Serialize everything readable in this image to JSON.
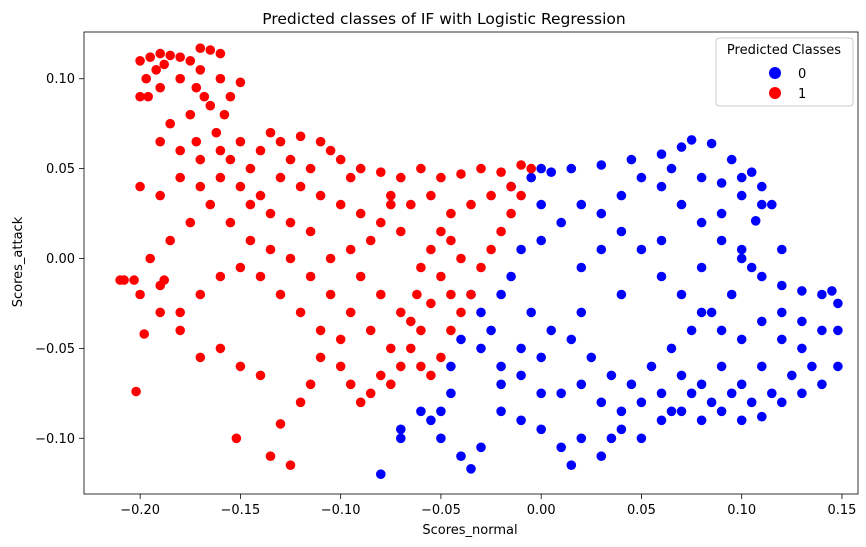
{
  "chart_data": {
    "type": "scatter",
    "title": "Predicted classes of IF with Logistic Regression",
    "xlabel": "Scores_normal",
    "ylabel": "Scores_attack",
    "xlim": [
      -0.228,
      0.158
    ],
    "ylim": [
      -0.131,
      0.126
    ],
    "x_ticks": [
      -0.2,
      -0.15,
      -0.1,
      -0.05,
      0.0,
      0.05,
      0.1,
      0.15
    ],
    "x_tick_labels": [
      "−0.20",
      "−0.15",
      "−0.10",
      "−0.05",
      "0.00",
      "0.05",
      "0.10",
      "0.15"
    ],
    "y_ticks": [
      -0.1,
      -0.05,
      0.0,
      0.05,
      0.1
    ],
    "y_tick_labels": [
      "−0.10",
      "−0.05",
      "0.00",
      "0.05",
      "0.10"
    ],
    "grid": false,
    "legend": {
      "title": "Predicted Classes",
      "placement": "top-right",
      "entries": [
        {
          "label": "0",
          "color": "#0000ff"
        },
        {
          "label": "1",
          "color": "#ff0000"
        }
      ]
    },
    "series": [
      {
        "name": "0",
        "color": "#0000ff",
        "points": [
          [
            0.005,
            0.048
          ],
          [
            0.015,
            0.05
          ],
          [
            0.03,
            0.052
          ],
          [
            0.045,
            0.055
          ],
          [
            0.06,
            0.058
          ],
          [
            0.07,
            0.062
          ],
          [
            0.075,
            0.066
          ],
          [
            0.085,
            0.064
          ],
          [
            0.095,
            0.055
          ],
          [
            0.105,
            0.048
          ],
          [
            0.11,
            0.04
          ],
          [
            0.115,
            0.03
          ],
          [
            0.1,
            0.035
          ],
          [
            0.09,
            0.025
          ],
          [
            0.08,
            0.02
          ],
          [
            0.07,
            0.03
          ],
          [
            0.06,
            0.04
          ],
          [
            0.05,
            0.045
          ],
          [
            0.04,
            0.035
          ],
          [
            0.03,
            0.025
          ],
          [
            0.02,
            0.03
          ],
          [
            0.01,
            0.02
          ],
          [
            0.0,
            0.03
          ],
          [
            0.0,
            0.01
          ],
          [
            -0.01,
            0.005
          ],
          [
            -0.015,
            -0.01
          ],
          [
            -0.02,
            -0.02
          ],
          [
            -0.03,
            -0.03
          ],
          [
            -0.04,
            -0.045
          ],
          [
            -0.045,
            -0.06
          ],
          [
            -0.045,
            -0.075
          ],
          [
            -0.05,
            -0.085
          ],
          [
            -0.055,
            -0.09
          ],
          [
            -0.06,
            -0.085
          ],
          [
            -0.07,
            -0.1
          ],
          [
            -0.08,
            -0.12
          ],
          [
            -0.07,
            -0.095
          ],
          [
            -0.05,
            -0.1
          ],
          [
            -0.04,
            -0.11
          ],
          [
            -0.035,
            -0.117
          ],
          [
            -0.03,
            -0.105
          ],
          [
            -0.02,
            -0.085
          ],
          [
            -0.01,
            -0.09
          ],
          [
            0.0,
            -0.075
          ],
          [
            0.0,
            -0.095
          ],
          [
            0.01,
            -0.105
          ],
          [
            0.015,
            -0.115
          ],
          [
            0.02,
            -0.1
          ],
          [
            0.03,
            -0.11
          ],
          [
            0.035,
            -0.1
          ],
          [
            0.04,
            -0.095
          ],
          [
            0.05,
            -0.1
          ],
          [
            0.06,
            -0.09
          ],
          [
            0.07,
            -0.085
          ],
          [
            0.08,
            -0.09
          ],
          [
            0.09,
            -0.085
          ],
          [
            0.1,
            -0.09
          ],
          [
            0.11,
            -0.088
          ],
          [
            0.12,
            -0.08
          ],
          [
            0.13,
            -0.075
          ],
          [
            0.14,
            -0.07
          ],
          [
            0.148,
            -0.06
          ],
          [
            0.148,
            -0.04
          ],
          [
            0.148,
            -0.025
          ],
          [
            0.145,
            -0.018
          ],
          [
            0.14,
            -0.02
          ],
          [
            0.13,
            -0.018
          ],
          [
            0.12,
            -0.015
          ],
          [
            0.11,
            -0.01
          ],
          [
            0.1,
            0.005
          ],
          [
            0.105,
            -0.005
          ],
          [
            0.095,
            -0.02
          ],
          [
            0.085,
            -0.03
          ],
          [
            0.075,
            -0.04
          ],
          [
            0.065,
            -0.05
          ],
          [
            0.055,
            -0.06
          ],
          [
            0.045,
            -0.07
          ],
          [
            0.035,
            -0.065
          ],
          [
            0.025,
            -0.055
          ],
          [
            0.015,
            -0.045
          ],
          [
            0.005,
            -0.04
          ],
          [
            -0.005,
            -0.03
          ],
          [
            -0.01,
            -0.05
          ],
          [
            -0.02,
            -0.06
          ],
          [
            -0.025,
            -0.04
          ],
          [
            -0.035,
            -0.02
          ],
          [
            -0.03,
            -0.05
          ],
          [
            -0.02,
            -0.07
          ],
          [
            -0.01,
            -0.065
          ],
          [
            0.0,
            -0.055
          ],
          [
            0.02,
            -0.03
          ],
          [
            0.04,
            -0.02
          ],
          [
            0.06,
            -0.01
          ],
          [
            0.08,
            -0.005
          ],
          [
            0.09,
            0.01
          ],
          [
            0.1,
            0.0
          ],
          [
            0.12,
            -0.03
          ],
          [
            0.13,
            -0.05
          ],
          [
            0.14,
            -0.04
          ],
          [
            0.11,
            -0.06
          ],
          [
            0.1,
            -0.07
          ],
          [
            0.09,
            -0.06
          ],
          [
            0.08,
            -0.07
          ],
          [
            0.07,
            -0.065
          ],
          [
            0.06,
            -0.075
          ],
          [
            0.05,
            -0.08
          ],
          [
            0.04,
            -0.085
          ],
          [
            0.03,
            -0.08
          ],
          [
            0.02,
            -0.07
          ],
          [
            0.01,
            -0.075
          ],
          [
            0.06,
            0.01
          ],
          [
            0.05,
            0.005
          ],
          [
            0.04,
            0.015
          ],
          [
            0.03,
            0.005
          ],
          [
            0.02,
            -0.005
          ],
          [
            0.07,
            -0.02
          ],
          [
            0.08,
            -0.03
          ],
          [
            0.09,
            -0.04
          ],
          [
            0.1,
            -0.045
          ],
          [
            0.11,
            -0.035
          ],
          [
            0.12,
            -0.045
          ],
          [
            0.13,
            -0.035
          ],
          [
            0.135,
            -0.06
          ],
          [
            0.125,
            -0.065
          ],
          [
            0.115,
            -0.075
          ],
          [
            0.105,
            -0.08
          ],
          [
            0.095,
            -0.075
          ],
          [
            0.085,
            -0.08
          ],
          [
            0.075,
            -0.075
          ],
          [
            0.065,
            -0.085
          ],
          [
            -0.015,
            0.04
          ],
          [
            -0.005,
            0.045
          ],
          [
            0.0,
            0.05
          ],
          [
            0.065,
            0.05
          ],
          [
            0.08,
            0.045
          ],
          [
            0.09,
            0.042
          ],
          [
            0.1,
            0.045
          ],
          [
            0.11,
            0.03
          ],
          [
            0.107,
            0.021
          ],
          [
            0.12,
            0.005
          ]
        ]
      },
      {
        "name": "1",
        "color": "#ff0000",
        "points": [
          [
            -0.2,
            0.11
          ],
          [
            -0.195,
            0.112
          ],
          [
            -0.19,
            0.114
          ],
          [
            -0.185,
            0.113
          ],
          [
            -0.18,
            0.112
          ],
          [
            -0.175,
            0.11
          ],
          [
            -0.17,
            0.117
          ],
          [
            -0.165,
            0.116
          ],
          [
            -0.16,
            0.114
          ],
          [
            -0.197,
            0.1
          ],
          [
            -0.2,
            0.09
          ],
          [
            -0.19,
            0.095
          ],
          [
            -0.18,
            0.1
          ],
          [
            -0.17,
            0.105
          ],
          [
            -0.16,
            0.1
          ],
          [
            -0.15,
            0.098
          ],
          [
            -0.155,
            0.09
          ],
          [
            -0.165,
            0.085
          ],
          [
            -0.175,
            0.08
          ],
          [
            -0.185,
            0.075
          ],
          [
            -0.19,
            0.065
          ],
          [
            -0.18,
            0.06
          ],
          [
            -0.17,
            0.055
          ],
          [
            -0.16,
            0.06
          ],
          [
            -0.15,
            0.065
          ],
          [
            -0.14,
            0.06
          ],
          [
            -0.135,
            0.07
          ],
          [
            -0.13,
            0.065
          ],
          [
            -0.12,
            0.068
          ],
          [
            -0.11,
            0.065
          ],
          [
            -0.105,
            0.06
          ],
          [
            -0.1,
            0.055
          ],
          [
            -0.09,
            0.05
          ],
          [
            -0.08,
            0.048
          ],
          [
            -0.07,
            0.045
          ],
          [
            -0.06,
            0.05
          ],
          [
            -0.05,
            0.045
          ],
          [
            -0.04,
            0.047
          ],
          [
            -0.03,
            0.05
          ],
          [
            -0.02,
            0.048
          ],
          [
            -0.01,
            0.052
          ],
          [
            -0.005,
            0.05
          ],
          [
            -0.015,
            0.04
          ],
          [
            -0.025,
            0.035
          ],
          [
            -0.035,
            0.03
          ],
          [
            -0.045,
            0.025
          ],
          [
            -0.05,
            0.015
          ],
          [
            -0.055,
            0.005
          ],
          [
            -0.06,
            -0.005
          ],
          [
            -0.062,
            -0.02
          ],
          [
            -0.065,
            -0.035
          ],
          [
            -0.065,
            -0.05
          ],
          [
            -0.06,
            -0.06
          ],
          [
            -0.055,
            -0.065
          ],
          [
            -0.05,
            -0.055
          ],
          [
            -0.045,
            -0.04
          ],
          [
            -0.04,
            -0.03
          ],
          [
            -0.035,
            -0.02
          ],
          [
            -0.03,
            -0.005
          ],
          [
            -0.025,
            0.005
          ],
          [
            -0.02,
            0.015
          ],
          [
            -0.015,
            0.025
          ],
          [
            -0.01,
            0.035
          ],
          [
            -0.07,
            -0.06
          ],
          [
            -0.075,
            -0.07
          ],
          [
            -0.08,
            -0.065
          ],
          [
            -0.085,
            -0.075
          ],
          [
            -0.09,
            -0.08
          ],
          [
            -0.095,
            -0.07
          ],
          [
            -0.1,
            -0.06
          ],
          [
            -0.11,
            -0.055
          ],
          [
            -0.115,
            -0.07
          ],
          [
            -0.12,
            -0.08
          ],
          [
            -0.125,
            -0.115
          ],
          [
            -0.135,
            -0.11
          ],
          [
            -0.13,
            -0.092
          ],
          [
            -0.152,
            -0.1
          ],
          [
            -0.14,
            -0.065
          ],
          [
            -0.15,
            -0.06
          ],
          [
            -0.16,
            -0.05
          ],
          [
            -0.17,
            -0.055
          ],
          [
            -0.18,
            -0.04
          ],
          [
            -0.19,
            -0.03
          ],
          [
            -0.2,
            -0.02
          ],
          [
            -0.21,
            -0.012
          ],
          [
            -0.202,
            -0.074
          ],
          [
            -0.198,
            -0.042
          ],
          [
            -0.188,
            -0.012
          ],
          [
            -0.195,
            0.0
          ],
          [
            -0.185,
            0.01
          ],
          [
            -0.175,
            0.02
          ],
          [
            -0.165,
            0.03
          ],
          [
            -0.155,
            0.02
          ],
          [
            -0.145,
            0.01
          ],
          [
            -0.135,
            0.005
          ],
          [
            -0.125,
            0.0
          ],
          [
            -0.115,
            -0.01
          ],
          [
            -0.105,
            -0.02
          ],
          [
            -0.095,
            -0.03
          ],
          [
            -0.085,
            -0.04
          ],
          [
            -0.075,
            -0.05
          ],
          [
            -0.2,
            0.04
          ],
          [
            -0.19,
            0.035
          ],
          [
            -0.18,
            0.045
          ],
          [
            -0.17,
            0.04
          ],
          [
            -0.16,
            0.045
          ],
          [
            -0.15,
            0.04
          ],
          [
            -0.14,
            0.035
          ],
          [
            -0.13,
            0.045
          ],
          [
            -0.12,
            0.04
          ],
          [
            -0.11,
            0.035
          ],
          [
            -0.1,
            0.03
          ],
          [
            -0.09,
            0.025
          ],
          [
            -0.08,
            0.02
          ],
          [
            -0.07,
            0.015
          ],
          [
            -0.065,
            0.03
          ],
          [
            -0.075,
            0.035
          ],
          [
            -0.085,
            0.01
          ],
          [
            -0.095,
            0.005
          ],
          [
            -0.105,
            0.0
          ],
          [
            -0.115,
            0.015
          ],
          [
            -0.125,
            0.02
          ],
          [
            -0.135,
            0.025
          ],
          [
            -0.145,
            0.03
          ],
          [
            -0.155,
            0.055
          ],
          [
            -0.145,
            0.05
          ],
          [
            -0.125,
            0.055
          ],
          [
            -0.115,
            0.05
          ],
          [
            -0.095,
            0.045
          ],
          [
            -0.075,
            0.03
          ],
          [
            -0.055,
            0.035
          ],
          [
            -0.045,
            0.01
          ],
          [
            -0.04,
            0.0
          ],
          [
            -0.05,
            -0.01
          ],
          [
            -0.055,
            -0.025
          ],
          [
            -0.045,
            -0.02
          ],
          [
            -0.06,
            -0.04
          ],
          [
            -0.07,
            -0.03
          ],
          [
            -0.08,
            -0.02
          ],
          [
            -0.09,
            -0.01
          ],
          [
            -0.1,
            -0.045
          ],
          [
            -0.11,
            -0.04
          ],
          [
            -0.12,
            -0.03
          ],
          [
            -0.13,
            -0.02
          ],
          [
            -0.14,
            -0.01
          ],
          [
            -0.15,
            -0.005
          ],
          [
            -0.16,
            -0.01
          ],
          [
            -0.17,
            -0.02
          ],
          [
            -0.18,
            -0.03
          ],
          [
            -0.19,
            -0.015
          ],
          [
            -0.203,
            -0.012
          ],
          [
            -0.208,
            -0.012
          ],
          [
            -0.196,
            0.09
          ],
          [
            -0.192,
            0.105
          ],
          [
            -0.188,
            0.108
          ],
          [
            -0.172,
            0.095
          ],
          [
            -0.168,
            0.09
          ],
          [
            -0.158,
            0.08
          ],
          [
            -0.162,
            0.07
          ],
          [
            -0.172,
            0.065
          ]
        ]
      }
    ]
  }
}
